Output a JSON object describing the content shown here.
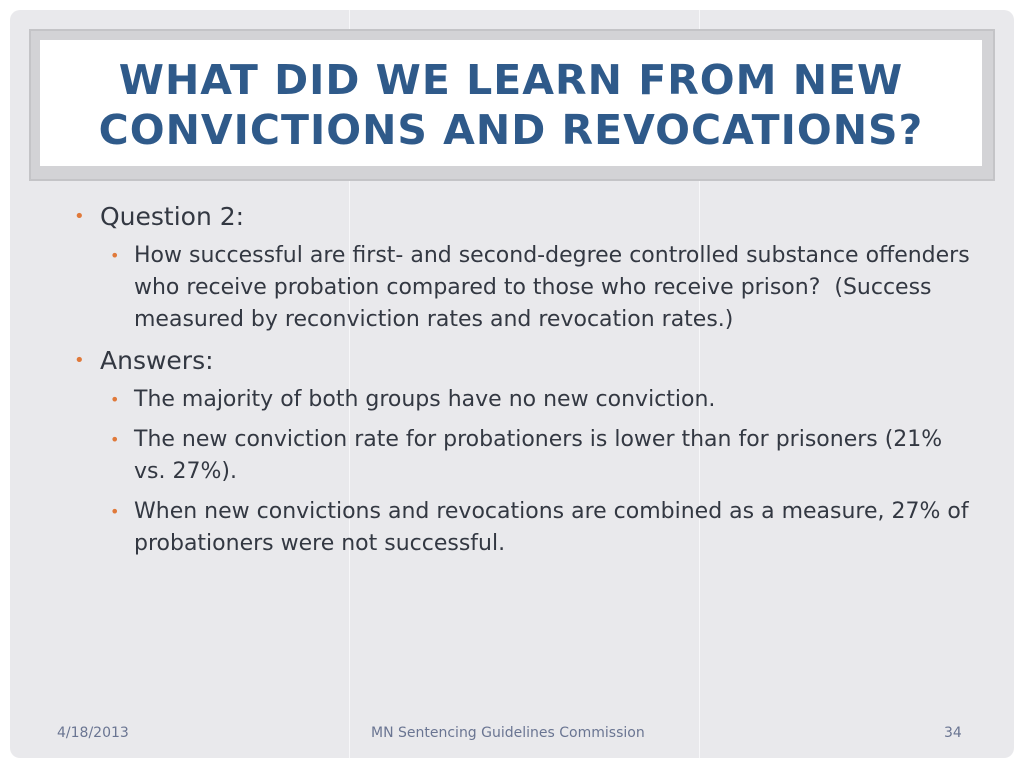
{
  "title": "What did we learn from new convictions and revocations?",
  "content": {
    "q_heading": "Question 2:",
    "q_text": "How successful are first- and second-degree controlled substance offenders who receive probation compared to those who receive prison?  (Success measured by reconviction rates and revocation rates.)",
    "a_heading": "Answers:",
    "answers": [
      "The majority of both groups have no new conviction.",
      "The new conviction rate for probationers is lower than for prisoners (21% vs. 27%).",
      "When new convictions and revocations are combined as a measure, 27% of probationers were not successful."
    ]
  },
  "footer": {
    "date": "4/18/2013",
    "center": "MN Sentencing Guidelines Commission",
    "page": "34"
  },
  "colors": {
    "title": "#2f5a8a",
    "bullet": "#e0793a",
    "body_text": "#333842",
    "background": "#e9e9ec"
  }
}
